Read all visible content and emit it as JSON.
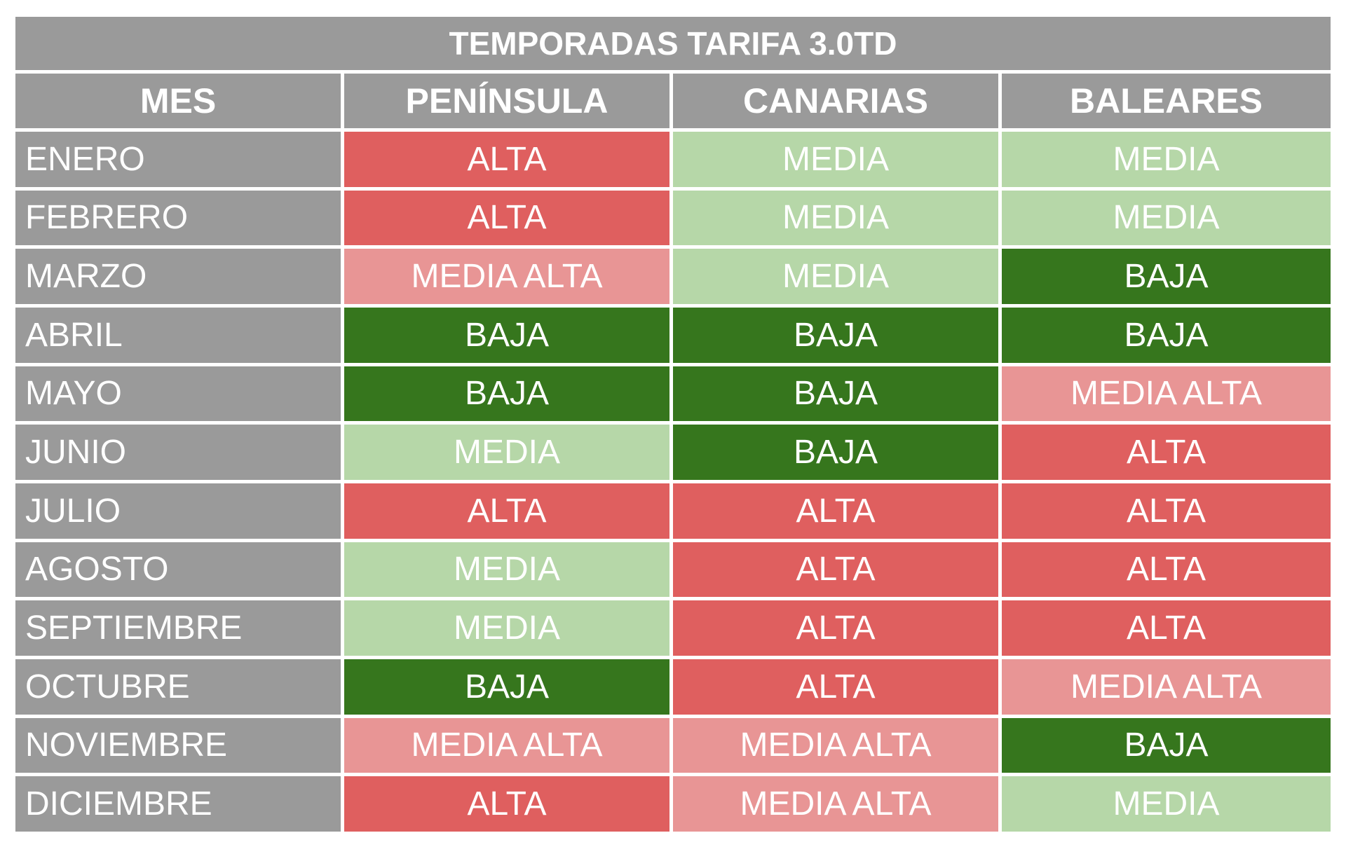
{
  "chart_data": {
    "type": "table",
    "title": "TEMPORADAS TARIFA 3.0TD",
    "columns": [
      "MES",
      "PENÍNSULA",
      "CANARIAS",
      "BALEARES"
    ],
    "rows": [
      {
        "month": "ENERO",
        "values": [
          "ALTA",
          "MEDIA",
          "MEDIA"
        ]
      },
      {
        "month": "FEBRERO",
        "values": [
          "ALTA",
          "MEDIA",
          "MEDIA"
        ]
      },
      {
        "month": "MARZO",
        "values": [
          "MEDIA ALTA",
          "MEDIA",
          "BAJA"
        ]
      },
      {
        "month": "ABRIL",
        "values": [
          "BAJA",
          "BAJA",
          "BAJA"
        ]
      },
      {
        "month": "MAYO",
        "values": [
          "BAJA",
          "BAJA",
          "MEDIA ALTA"
        ]
      },
      {
        "month": "JUNIO",
        "values": [
          "MEDIA",
          "BAJA",
          "ALTA"
        ]
      },
      {
        "month": "JULIO",
        "values": [
          "ALTA",
          "ALTA",
          "ALTA"
        ]
      },
      {
        "month": "AGOSTO",
        "values": [
          "MEDIA",
          "ALTA",
          "ALTA"
        ]
      },
      {
        "month": "SEPTIEMBRE",
        "values": [
          "MEDIA",
          "ALTA",
          "ALTA"
        ]
      },
      {
        "month": "OCTUBRE",
        "values": [
          "BAJA",
          "ALTA",
          "MEDIA ALTA"
        ]
      },
      {
        "month": "NOVIEMBRE",
        "values": [
          "MEDIA ALTA",
          "MEDIA ALTA",
          "BAJA"
        ]
      },
      {
        "month": "DICIEMBRE",
        "values": [
          "ALTA",
          "MEDIA ALTA",
          "MEDIA"
        ]
      }
    ]
  },
  "colors": {
    "header": "#9a9a9a",
    "text": "#ffffff",
    "ALTA": "#df5f5f",
    "MEDIA ALTA": "#e89595",
    "MEDIA": "#b6d7a8",
    "BAJA": "#36761d"
  }
}
